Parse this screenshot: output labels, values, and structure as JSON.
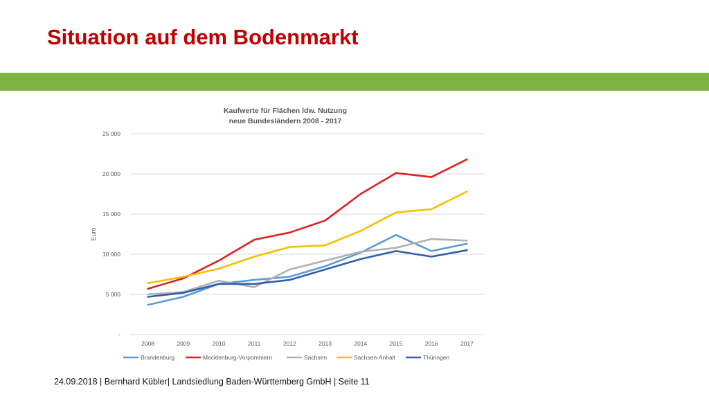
{
  "slide": {
    "title": "Situation auf dem Bodenmarkt",
    "accent_color": "#7cb342",
    "title_color": "#c00000",
    "footer": "24.09.2018 | Bernhard Kübler| Landsiedlung Baden-Württemberg GmbH | Seite 11"
  },
  "chart_data": {
    "type": "line",
    "title": "Kaufwerte für Flächen ldw. Nutzung",
    "subtitle": "neue Bundesländern 2008 - 2017",
    "ylabel": "Euro",
    "xlabel": "",
    "x": [
      "2008",
      "2009",
      "2010",
      "2011",
      "2012",
      "2013",
      "2014",
      "2015",
      "2016",
      "2017"
    ],
    "ylim": [
      0,
      25000
    ],
    "yticks": [
      0,
      5000,
      10000,
      15000,
      20000,
      25000
    ],
    "ytick_labels": [
      "-",
      "5 000",
      "10 000",
      "15 000",
      "20 000",
      "25 000"
    ],
    "grid": "horizontal",
    "legend_position": "bottom",
    "series": [
      {
        "name": "Brandenburg",
        "color": "#5b9bd5",
        "values": [
          3700,
          4700,
          6300,
          6800,
          7200,
          8500,
          10200,
          12400,
          10400,
          11300
        ]
      },
      {
        "name": "Mecklenburg-Vorpommern",
        "color": "#e02020",
        "values": [
          5700,
          7000,
          9200,
          11800,
          12700,
          14200,
          17500,
          20100,
          19600,
          21800
        ]
      },
      {
        "name": "Sachsen",
        "color": "#b0b0b0",
        "values": [
          5000,
          5300,
          6700,
          5900,
          8100,
          9200,
          10300,
          10800,
          11900,
          11700
        ]
      },
      {
        "name": "Sachsen-Anhalt",
        "color": "#f5c000",
        "values": [
          6400,
          7200,
          8200,
          9700,
          10900,
          11100,
          12900,
          15200,
          15600,
          17800
        ]
      },
      {
        "name": "Thüringen",
        "color": "#2e5fac",
        "values": [
          4700,
          5200,
          6300,
          6300,
          6800,
          8100,
          9400,
          10400,
          9700,
          10500
        ]
      }
    ]
  }
}
